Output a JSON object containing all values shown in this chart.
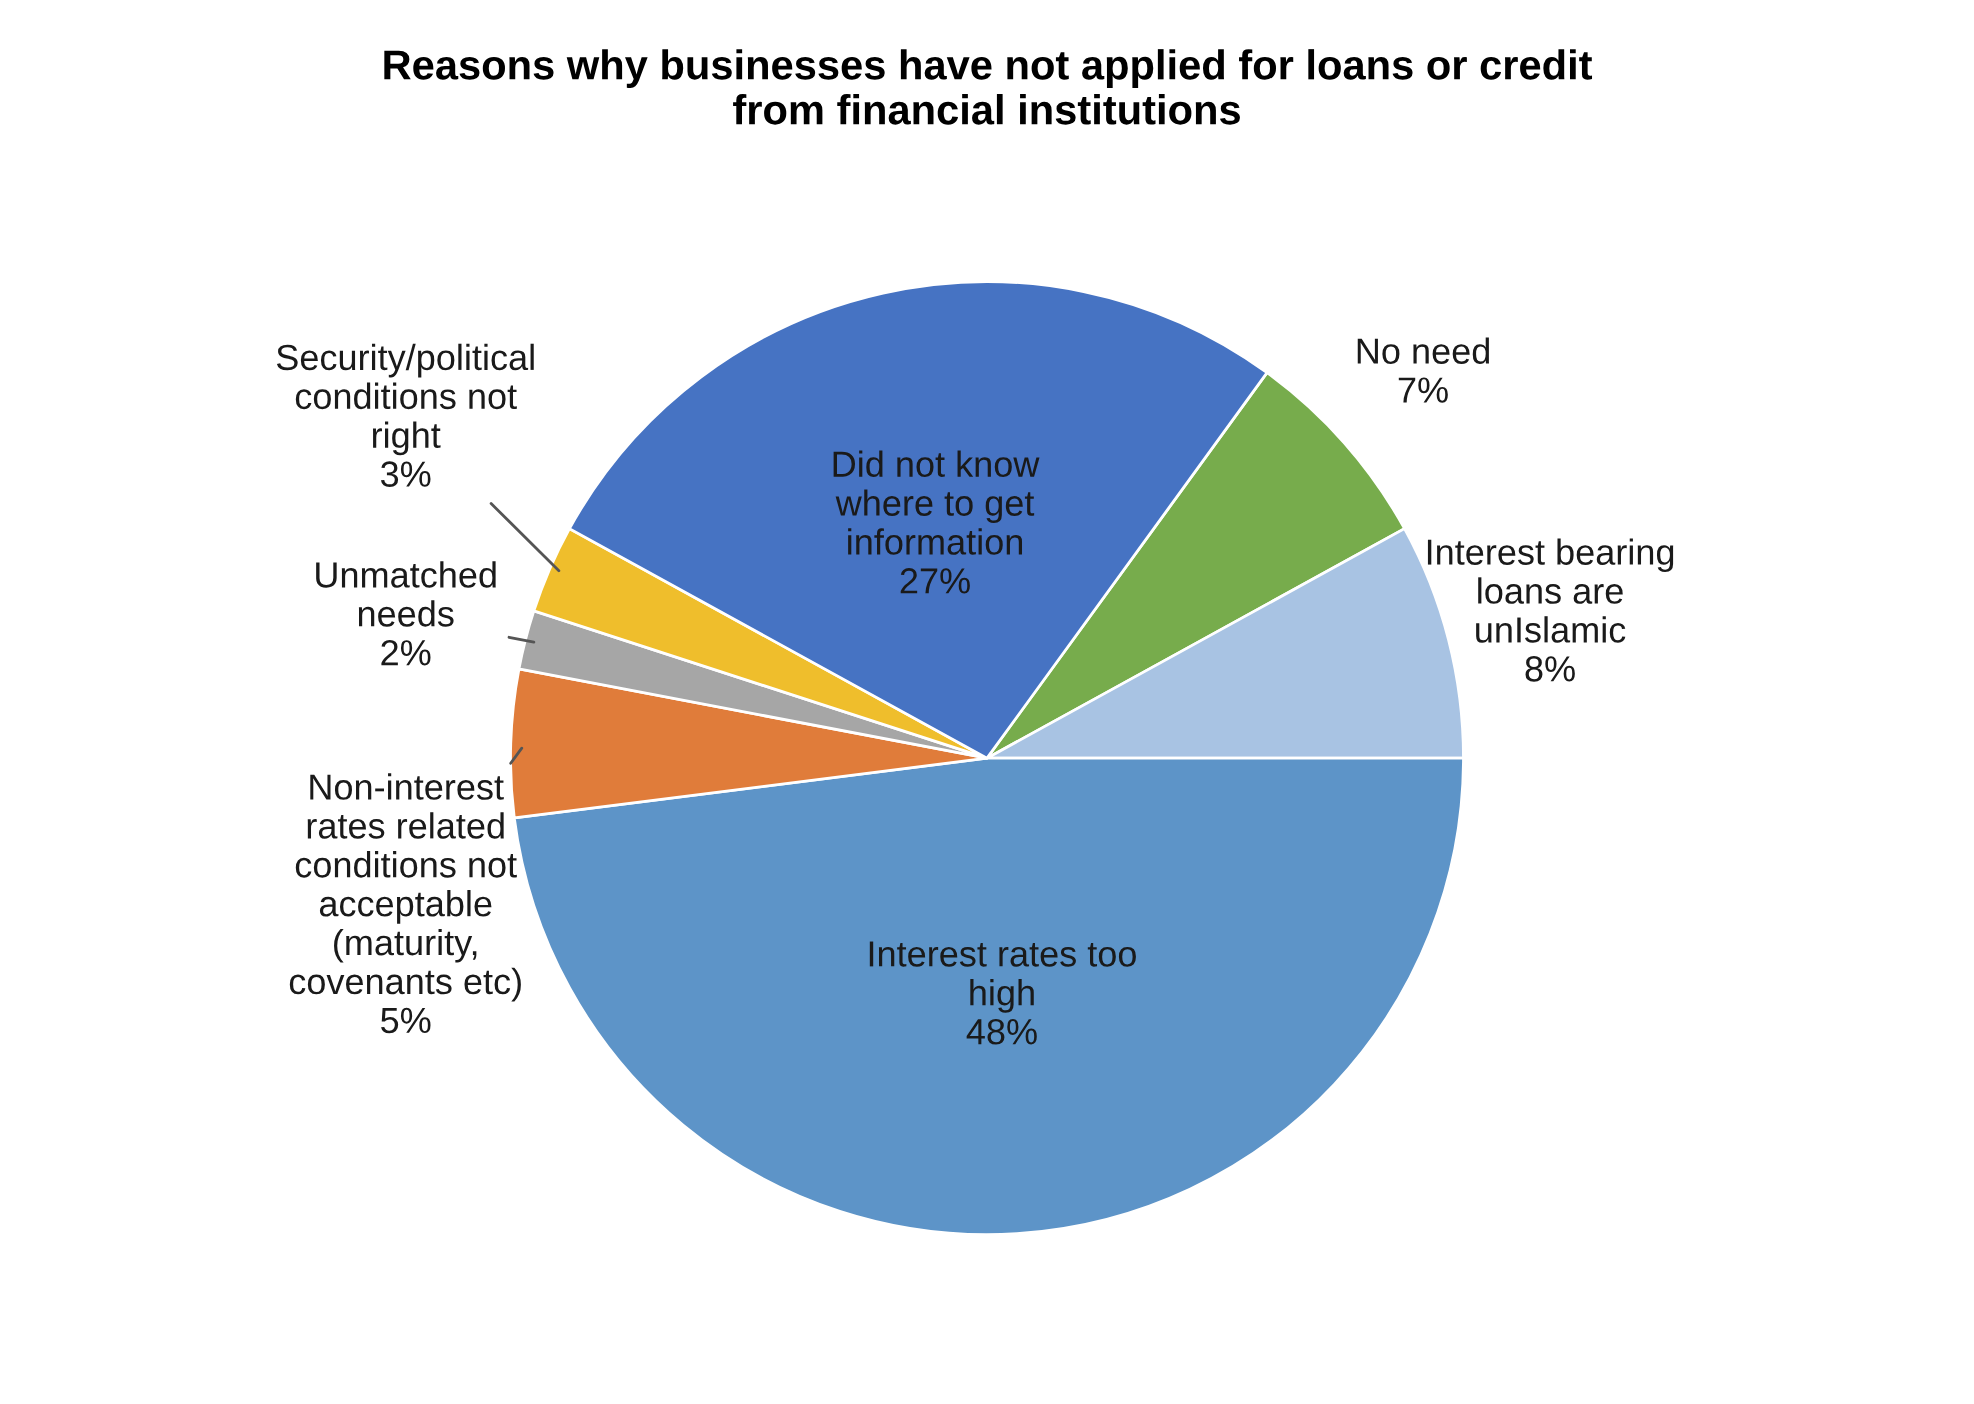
{
  "chart_data": {
    "type": "pie",
    "title": "Reasons why businesses have not applied for loans or credit\nfrom financial institutions",
    "categories": [
      "No need",
      "Interest bearing\nloans are\nunIslamic",
      "Interest rates too\nhigh",
      "Non-interest\nrates related\nconditions not\nacceptable\n(maturity,\ncovenants etc)",
      "Unmatched\nneeds",
      "Security/political\nconditions not\nright",
      "Did not know\nwhere to get\ninformation"
    ],
    "values": [
      7,
      8,
      48,
      5,
      2,
      3,
      27
    ],
    "colors": [
      "#77ac4c",
      "#a8c3e3",
      "#5d94c8",
      "#e07c3a",
      "#a6a6a6",
      "#efbe2c",
      "#4673c3"
    ],
    "value_labels": [
      "7%",
      "8%",
      "48%",
      "5%",
      "2%",
      "3%",
      "27%"
    ]
  }
}
